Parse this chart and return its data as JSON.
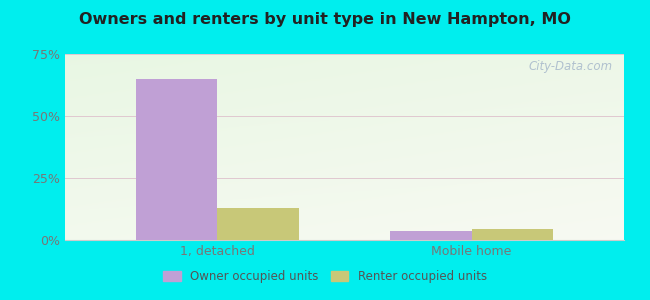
{
  "title": "Owners and renters by unit type in New Hampton, MO",
  "categories": [
    "1, detached",
    "Mobile home"
  ],
  "owner_values": [
    65.0,
    3.5
  ],
  "renter_values": [
    13.0,
    4.5
  ],
  "owner_color": "#c0a0d5",
  "renter_color": "#c8c878",
  "ylim": [
    0,
    75
  ],
  "yticks": [
    0,
    25,
    50,
    75
  ],
  "yticklabels": [
    "0%",
    "25%",
    "50%",
    "75%"
  ],
  "bar_width": 0.32,
  "outer_bg": "#00eeee",
  "legend_labels": [
    "Owner occupied units",
    "Renter occupied units"
  ],
  "watermark": "City-Data.com",
  "title_fontsize": 11.5,
  "bg_left": "#d8eece",
  "bg_right": "#eaf5e8",
  "bg_top": "#e8f2e2",
  "bg_bottom": "#f0f8ec"
}
